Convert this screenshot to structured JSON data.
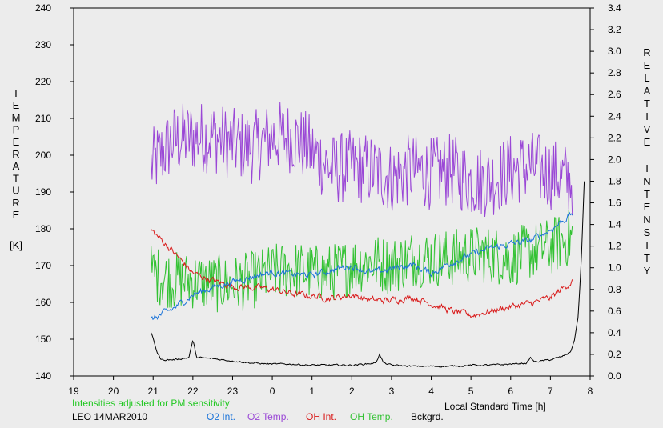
{
  "chart_data": {
    "type": "line",
    "left_axis": {
      "label_letters": [
        "T",
        "E",
        "M",
        "P",
        "E",
        "R",
        "A",
        "T",
        "U",
        "R",
        "E"
      ],
      "unit": "[K]",
      "ylim": [
        140,
        240
      ],
      "ticks": [
        "140",
        "150",
        "160",
        "170",
        "180",
        "190",
        "200",
        "210",
        "220",
        "230",
        "240"
      ]
    },
    "right_axis": {
      "label_word1": [
        "R",
        "E",
        "L",
        "A",
        "T",
        "I",
        "V",
        "E"
      ],
      "label_word2": [
        "I",
        "N",
        "T",
        "E",
        "N",
        "S",
        "I",
        "T",
        "Y"
      ],
      "ylim": [
        0.0,
        3.4
      ],
      "ticks": [
        "0.0",
        "0.2",
        "0.4",
        "0.6",
        "0.8",
        "1.0",
        "1.2",
        "1.4",
        "1.6",
        "1.8",
        "2.0",
        "2.2",
        "2.4",
        "2.6",
        "2.8",
        "3.0",
        "3.2",
        "3.4"
      ]
    },
    "x_axis": {
      "label": "Local Standard Time [h]",
      "ticks": [
        "19",
        "20",
        "21",
        "22",
        "23",
        "0",
        "1",
        "2",
        "3",
        "4",
        "5",
        "6",
        "7",
        "8"
      ],
      "xlim": [
        19,
        32
      ]
    },
    "note": "Intensities adjusted for PM sensitivity",
    "station": "LEO 14MAR2010",
    "colors": {
      "o2_int": "#1a73d9",
      "o2_temp": "#9a47d6",
      "oh_int": "#d91a1a",
      "oh_temp": "#33c233",
      "bckgrd": "#000000",
      "note": "#22c822"
    },
    "series": [
      {
        "key": "o2_temp",
        "name": "O2 Temp.",
        "axis": "left",
        "x_start": 20.95,
        "x_end": 31.55,
        "noise": 10,
        "x": [
          20.95,
          21.5,
          22.0,
          22.5,
          23.0,
          23.5,
          24.0,
          24.5,
          25.0,
          25.5,
          26.0,
          26.5,
          27.0,
          27.5,
          28.0,
          28.5,
          29.0,
          29.5,
          30.0,
          30.5,
          31.0,
          31.55
        ],
        "values": [
          197,
          204,
          205,
          205,
          203,
          202,
          205,
          205,
          201,
          196,
          197,
          196,
          194,
          196,
          195,
          196,
          193,
          193,
          196,
          197,
          195,
          193
        ]
      },
      {
        "key": "oh_temp",
        "name": "OH Temp.",
        "axis": "left",
        "x_start": 20.95,
        "x_end": 31.55,
        "noise": 8,
        "x": [
          20.95,
          21.5,
          22.0,
          22.5,
          23.0,
          23.5,
          24.0,
          24.5,
          25.0,
          25.5,
          26.0,
          26.5,
          27.0,
          27.5,
          28.0,
          28.5,
          29.0,
          29.5,
          30.0,
          30.5,
          31.0,
          31.55
        ],
        "values": [
          168,
          166,
          166,
          165,
          165,
          166,
          168,
          169,
          168,
          168,
          170,
          171,
          170,
          172,
          172,
          172,
          173,
          173,
          172,
          174,
          175,
          178
        ]
      },
      {
        "key": "o2_int",
        "name": "O2 Int.",
        "axis": "right",
        "x_start": 20.95,
        "x_end": 31.55,
        "noise": 0.025,
        "x": [
          20.95,
          21.5,
          22.0,
          22.5,
          23.0,
          23.5,
          24.0,
          24.5,
          25.0,
          25.5,
          26.0,
          26.5,
          27.0,
          27.5,
          28.0,
          28.5,
          29.0,
          29.5,
          30.0,
          30.5,
          31.0,
          31.55
        ],
        "values": [
          0.52,
          0.62,
          0.75,
          0.82,
          0.87,
          0.92,
          0.96,
          0.94,
          0.93,
          0.98,
          1.02,
          0.95,
          0.99,
          1.03,
          0.95,
          1.05,
          1.12,
          1.18,
          1.22,
          1.25,
          1.35,
          1.5
        ]
      },
      {
        "key": "oh_int",
        "name": "OH Int.",
        "axis": "right",
        "x_start": 20.95,
        "x_end": 31.55,
        "noise": 0.025,
        "x": [
          20.95,
          21.5,
          22.0,
          22.5,
          23.0,
          23.5,
          24.0,
          24.5,
          25.0,
          25.5,
          26.0,
          26.5,
          27.0,
          27.5,
          28.0,
          28.5,
          29.0,
          29.5,
          30.0,
          30.5,
          31.0,
          31.55
        ],
        "values": [
          1.35,
          1.15,
          0.95,
          0.88,
          0.83,
          0.82,
          0.8,
          0.76,
          0.74,
          0.72,
          0.75,
          0.7,
          0.7,
          0.73,
          0.67,
          0.6,
          0.56,
          0.6,
          0.64,
          0.67,
          0.72,
          0.88
        ]
      },
      {
        "key": "bckgrd",
        "name": "Bckgrd.",
        "axis": "right",
        "x_start": 20.95,
        "x_end": 31.85,
        "noise": 0.006,
        "x": [
          20.95,
          21.1,
          21.2,
          21.5,
          21.9,
          22.0,
          22.1,
          22.5,
          23.0,
          23.5,
          24.0,
          24.5,
          25.0,
          25.5,
          26.0,
          26.6,
          26.7,
          26.8,
          27.0,
          27.5,
          28.0,
          28.5,
          29.0,
          29.5,
          30.0,
          30.4,
          30.5,
          30.6,
          31.0,
          31.3,
          31.5,
          31.6,
          31.7,
          31.78,
          31.85
        ],
        "values": [
          0.4,
          0.22,
          0.15,
          0.15,
          0.17,
          0.33,
          0.17,
          0.16,
          0.14,
          0.12,
          0.11,
          0.11,
          0.1,
          0.1,
          0.1,
          0.12,
          0.2,
          0.12,
          0.1,
          0.09,
          0.09,
          0.09,
          0.1,
          0.1,
          0.11,
          0.12,
          0.17,
          0.13,
          0.15,
          0.18,
          0.22,
          0.32,
          0.55,
          1.1,
          1.8
        ]
      }
    ]
  }
}
